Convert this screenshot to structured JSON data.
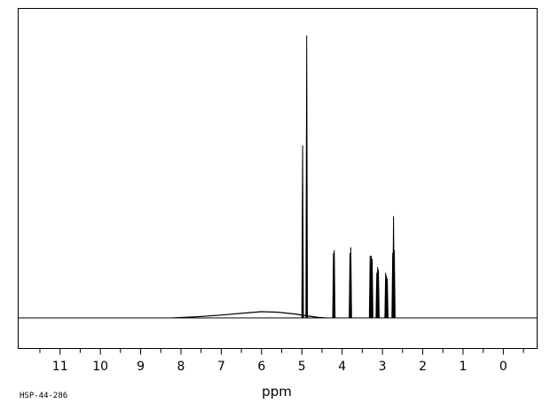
{
  "chart_data": {
    "type": "line",
    "title": "",
    "xlabel": "ppm",
    "ylabel": "",
    "xlim": [
      12.05,
      -0.85
    ],
    "x_reversed": true,
    "ylim": [
      -0.1,
      1.0
    ],
    "grid": false,
    "legend": "none",
    "x_ticks": [
      11,
      10,
      9,
      8,
      7,
      6,
      5,
      4,
      3,
      2,
      1,
      0
    ],
    "x_tick_labels": [
      "11",
      "10",
      "9",
      "8",
      "7",
      "6",
      "5",
      "4",
      "3",
      "2",
      "1",
      "0"
    ],
    "baseline_hump": [
      {
        "x": 8.2,
        "y": 0.0
      },
      {
        "x": 7.6,
        "y": 0.004
      },
      {
        "x": 7.0,
        "y": 0.01
      },
      {
        "x": 6.5,
        "y": 0.016
      },
      {
        "x": 6.0,
        "y": 0.022
      },
      {
        "x": 5.6,
        "y": 0.02
      },
      {
        "x": 5.2,
        "y": 0.014
      },
      {
        "x": 4.9,
        "y": 0.008
      },
      {
        "x": 4.6,
        "y": 0.002
      },
      {
        "x": 4.4,
        "y": 0.0
      }
    ],
    "peaks": [
      {
        "x": 4.98,
        "y": 0.61
      },
      {
        "x": 4.88,
        "y": 1.0
      },
      {
        "x": 4.215,
        "y": 0.23
      },
      {
        "x": 4.195,
        "y": 0.24
      },
      {
        "x": 3.805,
        "y": 0.23
      },
      {
        "x": 3.785,
        "y": 0.25
      },
      {
        "x": 3.305,
        "y": 0.22
      },
      {
        "x": 3.28,
        "y": 0.22
      },
      {
        "x": 3.255,
        "y": 0.21
      },
      {
        "x": 3.14,
        "y": 0.16
      },
      {
        "x": 3.12,
        "y": 0.18
      },
      {
        "x": 3.1,
        "y": 0.17
      },
      {
        "x": 2.92,
        "y": 0.16
      },
      {
        "x": 2.9,
        "y": 0.15
      },
      {
        "x": 2.88,
        "y": 0.14
      },
      {
        "x": 2.745,
        "y": 0.23
      },
      {
        "x": 2.725,
        "y": 0.36
      },
      {
        "x": 2.705,
        "y": 0.24
      }
    ]
  },
  "footnote": "HSP-44-286"
}
